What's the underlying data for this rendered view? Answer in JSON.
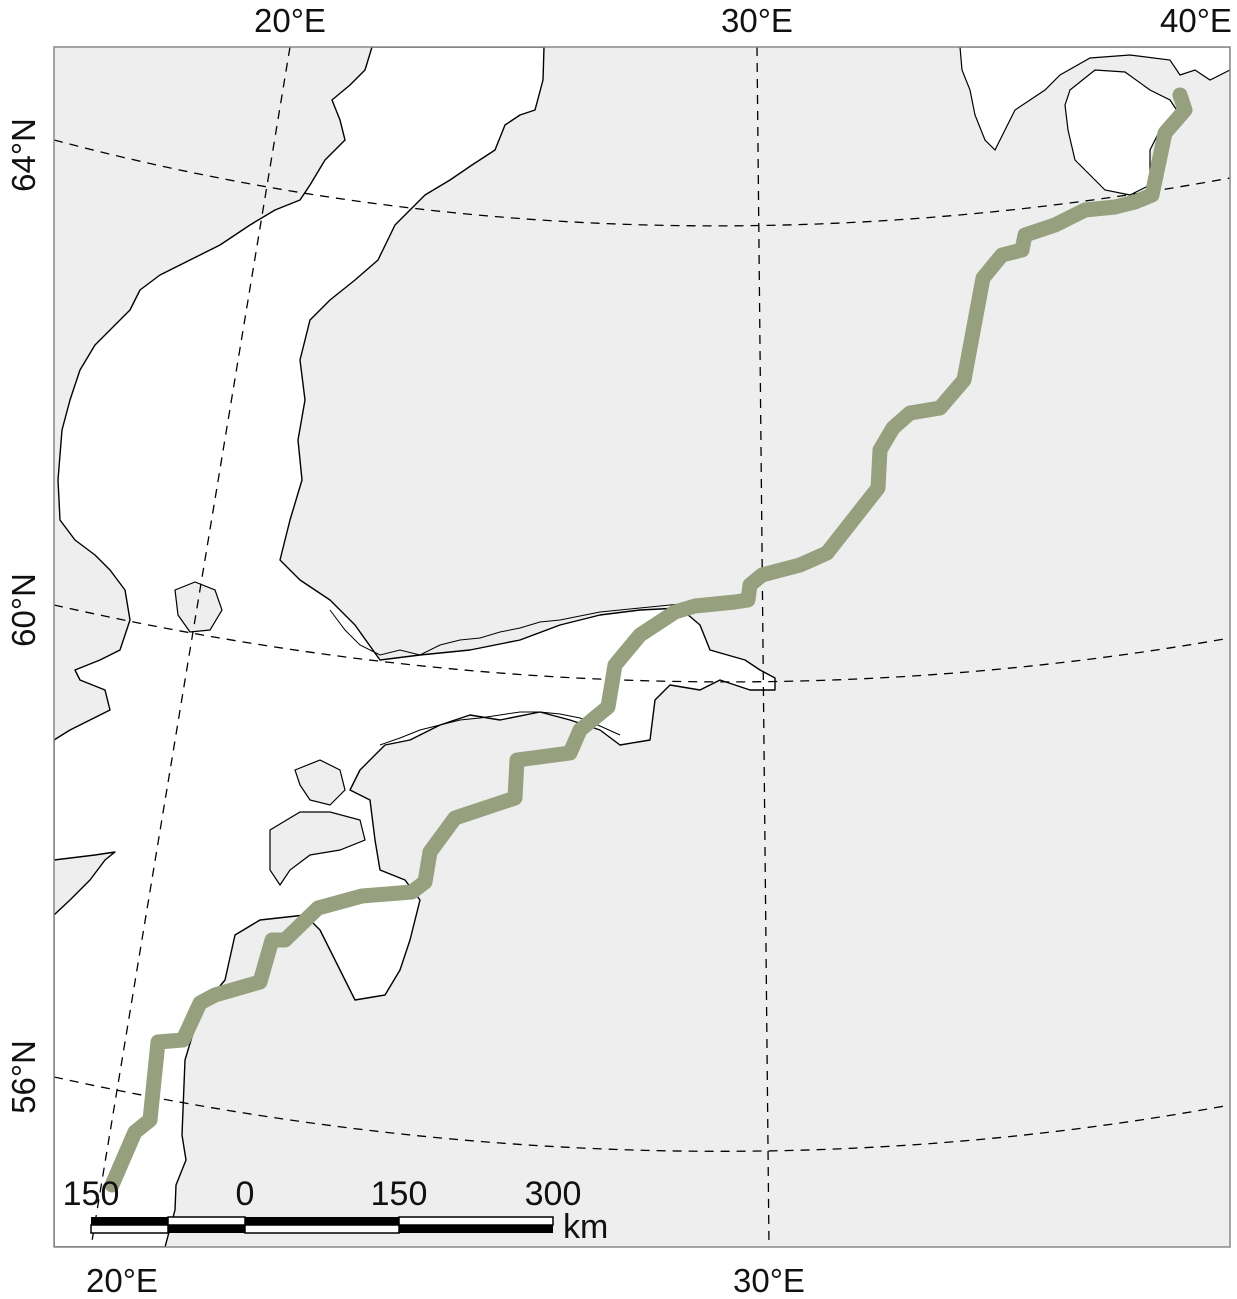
{
  "map": {
    "colors": {
      "land": "#eeeeee",
      "water": "#ffffff",
      "coastline": "#000000",
      "route": "#97a07e",
      "graticule": "#000000",
      "frame": "#888888"
    },
    "top_labels": [
      "20°E",
      "30°E",
      "40°E"
    ],
    "bottom_labels": [
      "20°E",
      "30°E"
    ],
    "left_labels": [
      "64°N",
      "60°N",
      "56°N"
    ],
    "scale_bar": {
      "labels": [
        "150",
        "0",
        "150",
        "300"
      ],
      "unit": "km"
    }
  }
}
